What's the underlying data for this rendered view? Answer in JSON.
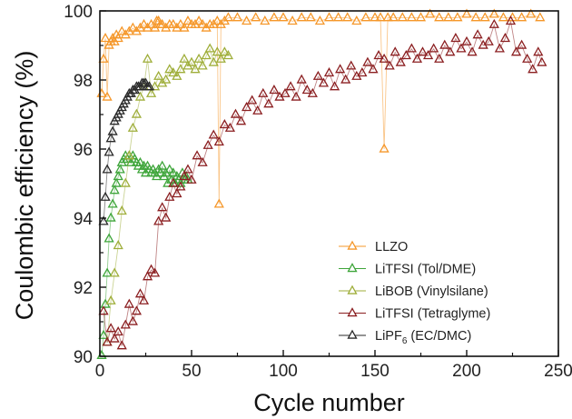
{
  "chart_data": {
    "type": "scatter",
    "xlabel": "Cycle number",
    "ylabel": "Coulombic efficiency (%)",
    "xlim": [
      0,
      250
    ],
    "ylim": [
      90,
      100
    ],
    "x_ticks": [
      0,
      50,
      100,
      150,
      200,
      250
    ],
    "y_ticks": [
      90,
      92,
      94,
      96,
      98,
      100
    ],
    "grid": false,
    "legend_position": "bottom-right",
    "marker": "open-triangle",
    "series": [
      {
        "name": "LLZO",
        "legend_label": "LLZO",
        "color": "#f5972a",
        "x": [
          1,
          2,
          3,
          4,
          5,
          6,
          7,
          8,
          9,
          10,
          12,
          14,
          16,
          18,
          20,
          22,
          24,
          26,
          28,
          30,
          31,
          32,
          33,
          34,
          36,
          38,
          40,
          42,
          44,
          46,
          48,
          50,
          52,
          54,
          56,
          58,
          60,
          62,
          64,
          65,
          66,
          68,
          70,
          75,
          80,
          85,
          90,
          95,
          100,
          105,
          110,
          115,
          120,
          125,
          130,
          135,
          140,
          145,
          150,
          153,
          155,
          157,
          160,
          165,
          170,
          175,
          180,
          185,
          190,
          195,
          200,
          205,
          210,
          215,
          220,
          225,
          230,
          235,
          240
        ],
        "y": [
          97.6,
          98.6,
          99.2,
          97.5,
          99.0,
          99.1,
          99.2,
          99.1,
          99.3,
          99.2,
          99.4,
          99.3,
          99.4,
          99.5,
          99.4,
          99.5,
          99.6,
          99.5,
          99.6,
          99.5,
          99.7,
          99.7,
          99.6,
          99.6,
          99.5,
          99.6,
          99.6,
          99.5,
          99.6,
          99.5,
          99.7,
          99.6,
          99.6,
          99.7,
          99.6,
          99.5,
          99.6,
          99.6,
          99.7,
          94.4,
          99.6,
          99.7,
          99.8,
          99.8,
          99.7,
          99.8,
          99.7,
          99.8,
          99.8,
          99.7,
          99.8,
          99.8,
          99.7,
          99.8,
          99.8,
          99.8,
          99.7,
          99.8,
          99.8,
          99.8,
          96.0,
          99.8,
          99.8,
          99.8,
          99.8,
          99.8,
          99.9,
          99.8,
          99.8,
          99.8,
          99.9,
          99.8,
          99.8,
          99.9,
          99.8,
          99.8,
          99.8,
          99.9,
          99.8
        ]
      },
      {
        "name": "LiTFSI (Tol/DME)",
        "legend_label": "LiTFSI (Tol/DME)",
        "color": "#3ea53a",
        "x": [
          1,
          2,
          3,
          4,
          5,
          6,
          7,
          8,
          9,
          10,
          11,
          12,
          13,
          14,
          15,
          16,
          17,
          18,
          19,
          20,
          21,
          22,
          23,
          24,
          25,
          26,
          27,
          28,
          29,
          30,
          31,
          32,
          33,
          34,
          35,
          36,
          37,
          38,
          39,
          40,
          41,
          42,
          43,
          44,
          45,
          46,
          47,
          48
        ],
        "y": [
          90.0,
          90.6,
          91.5,
          92.4,
          93.4,
          94.0,
          94.4,
          94.8,
          95.0,
          95.2,
          95.4,
          95.6,
          95.7,
          95.8,
          95.7,
          95.8,
          95.6,
          95.8,
          95.7,
          95.6,
          95.5,
          95.6,
          95.4,
          95.5,
          95.3,
          95.5,
          95.4,
          95.3,
          95.4,
          95.3,
          95.2,
          95.4,
          95.3,
          95.5,
          95.2,
          95.3,
          95.0,
          95.4,
          95.1,
          95.3,
          95.0,
          95.2,
          95.1,
          95.0,
          95.3,
          95.1,
          95.2,
          95.1
        ]
      },
      {
        "name": "LiBOB (Vinylsilane)",
        "legend_label": "LiBOB (Vinylsilane)",
        "color": "#9fae3a",
        "x": [
          4,
          6,
          8,
          10,
          12,
          14,
          16,
          18,
          20,
          22,
          24,
          26,
          28,
          30,
          32,
          34,
          36,
          38,
          40,
          42,
          44,
          46,
          48,
          50,
          52,
          54,
          56,
          58,
          60,
          62,
          64,
          66,
          68,
          70
        ],
        "y": [
          90.4,
          91.6,
          92.4,
          93.2,
          94.2,
          95.0,
          95.8,
          96.6,
          97.0,
          97.5,
          97.8,
          98.6,
          97.6,
          97.8,
          98.1,
          97.9,
          98.0,
          98.3,
          98.2,
          98.1,
          98.3,
          98.6,
          98.4,
          98.5,
          98.3,
          98.6,
          98.4,
          98.7,
          98.9,
          98.5,
          98.8,
          98.6,
          98.8,
          98.7
        ]
      },
      {
        "name": "LiTFSI (Tetraglyme)",
        "legend_label": "LiTFSI (Tetraglyme)",
        "color": "#8b1f21",
        "x": [
          2,
          4,
          6,
          8,
          10,
          12,
          14,
          16,
          18,
          20,
          22,
          24,
          26,
          28,
          30,
          32,
          34,
          36,
          38,
          40,
          42,
          44,
          46,
          48,
          50,
          53,
          56,
          59,
          62,
          65,
          68,
          71,
          74,
          77,
          80,
          83,
          86,
          89,
          92,
          95,
          98,
          101,
          104,
          107,
          110,
          113,
          116,
          119,
          122,
          125,
          128,
          131,
          134,
          137,
          140,
          143,
          146,
          149,
          152,
          155,
          158,
          161,
          164,
          167,
          170,
          173,
          176,
          179,
          182,
          185,
          188,
          191,
          194,
          197,
          200,
          203,
          206,
          209,
          212,
          215,
          218,
          221,
          224,
          227,
          230,
          233,
          236,
          239,
          241
        ],
        "y": [
          91.3,
          90.4,
          90.8,
          90.5,
          90.7,
          90.3,
          90.9,
          91.5,
          91.0,
          91.3,
          91.8,
          91.6,
          92.3,
          92.5,
          92.4,
          93.9,
          94.3,
          94.0,
          94.6,
          95.0,
          94.7,
          94.9,
          95.2,
          95.4,
          95.1,
          95.8,
          95.6,
          96.1,
          96.4,
          96.2,
          96.7,
          96.6,
          97.0,
          96.8,
          97.2,
          97.4,
          97.1,
          97.6,
          97.3,
          97.7,
          97.5,
          97.6,
          97.8,
          97.5,
          98.0,
          97.7,
          97.6,
          98.1,
          97.9,
          98.2,
          97.8,
          98.3,
          98.0,
          98.4,
          98.1,
          98.2,
          98.5,
          98.3,
          98.7,
          98.6,
          98.4,
          98.8,
          98.5,
          98.7,
          98.9,
          98.6,
          98.8,
          98.7,
          98.9,
          98.6,
          99.0,
          98.8,
          99.2,
          98.9,
          99.1,
          98.8,
          99.3,
          99.0,
          99.1,
          99.6,
          98.9,
          99.2,
          99.7,
          98.8,
          99.0,
          98.6,
          98.3,
          98.8,
          98.5
        ]
      },
      {
        "name": "LiPF6 (EC/DMC)",
        "legend_label": "LiPF",
        "legend_subscript": "6",
        "legend_suffix": " (EC/DMC)",
        "color": "#2a2a2a",
        "x": [
          2,
          3,
          4,
          5,
          6,
          7,
          8,
          9,
          10,
          11,
          12,
          13,
          14,
          15,
          16,
          17,
          18,
          19,
          20,
          21,
          22,
          23,
          24,
          25,
          26,
          27
        ],
        "y": [
          93.9,
          94.6,
          95.4,
          95.9,
          96.3,
          96.5,
          96.8,
          96.9,
          97.0,
          97.1,
          97.2,
          97.3,
          97.4,
          97.5,
          97.6,
          97.6,
          97.7,
          97.7,
          97.8,
          97.8,
          97.8,
          97.9,
          97.9,
          97.9,
          97.8,
          97.8
        ]
      }
    ]
  }
}
